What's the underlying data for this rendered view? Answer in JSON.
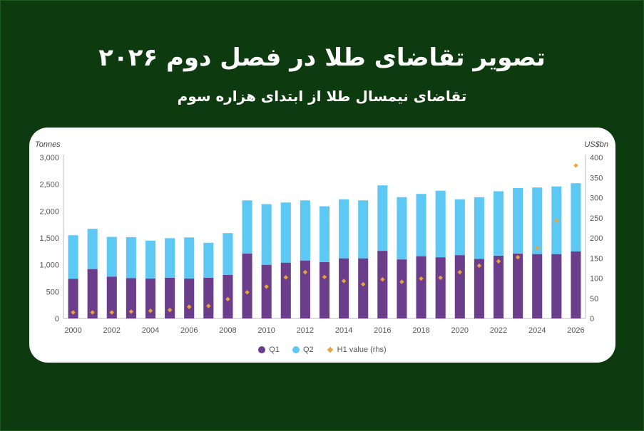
{
  "header": {
    "title": "تصویر تقاضای طلا در فصل دوم ۲۰۲۶",
    "subtitle": "تقاضای نیمسال طلا از ابتدای هزاره سوم"
  },
  "colors": {
    "background": "#0d3a0f",
    "q1": "#6b3e8c",
    "q2": "#5ec8f5",
    "h1_value": "#e8a33d"
  },
  "chart_data": {
    "type": "bar",
    "stacked": true,
    "left_axis_unit": "Tonnes",
    "right_axis_unit": "US$bn",
    "x": [
      2000,
      2001,
      2002,
      2003,
      2004,
      2005,
      2006,
      2007,
      2008,
      2009,
      2010,
      2011,
      2012,
      2013,
      2014,
      2015,
      2016,
      2017,
      2018,
      2019,
      2020,
      2021,
      2022,
      2023,
      2024,
      2025,
      2026
    ],
    "x_tick_labels": [
      "2000",
      "2002",
      "2004",
      "2006",
      "2008",
      "2010",
      "2012",
      "2014",
      "2016",
      "2018",
      "2020",
      "2022",
      "2024",
      "2026"
    ],
    "ylim": [
      0,
      3000
    ],
    "y_ticks": [
      "0",
      "500",
      "1,000",
      "1,500",
      "2,000",
      "2,500",
      "3,000"
    ],
    "y2lim": [
      0,
      400
    ],
    "y2_ticks": [
      "0",
      "50",
      "100",
      "150",
      "200",
      "250",
      "300",
      "350",
      "400"
    ],
    "series": [
      {
        "name": "Q1",
        "kind": "bar",
        "values": [
          740,
          920,
          780,
          750,
          745,
          760,
          745,
          760,
          810,
          1210,
          1000,
          1040,
          1080,
          1050,
          1120,
          1120,
          1260,
          1100,
          1160,
          1140,
          1180,
          1110,
          1170,
          1210,
          1200,
          1200,
          1250
        ]
      },
      {
        "name": "Q2",
        "kind": "bar",
        "values": [
          810,
          750,
          740,
          765,
          705,
          735,
          765,
          650,
          780,
          990,
          1130,
          1120,
          1120,
          1040,
          1100,
          1080,
          1220,
          1160,
          1160,
          1240,
          1040,
          1150,
          1200,
          1220,
          1240,
          1260,
          1270
        ]
      },
      {
        "name": "H1 value (rhs)",
        "kind": "marker",
        "axis": "right",
        "values": [
          15,
          15,
          15,
          17,
          19,
          21,
          29,
          31,
          48,
          65,
          79,
          102,
          115,
          103,
          93,
          85,
          97,
          91,
          99,
          101,
          115,
          131,
          142,
          152,
          175,
          243,
          380
        ]
      }
    ],
    "legend": [
      "Q1",
      "Q2",
      "H1 value (rhs)"
    ],
    "legend_position": "bottom",
    "grid": false
  }
}
